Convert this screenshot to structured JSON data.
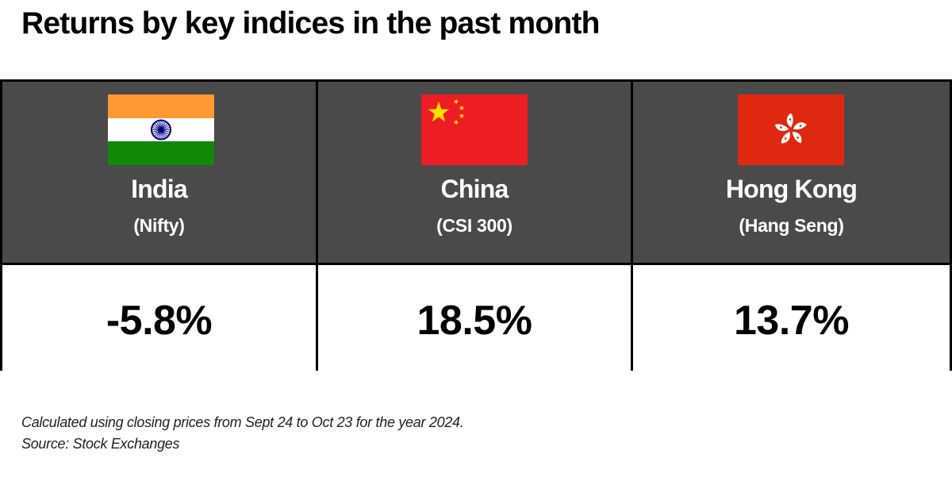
{
  "title": "Returns by key indices in the past month",
  "chart_data": {
    "type": "table",
    "columns": [
      {
        "country": "India",
        "index": "(Nifty)",
        "value": "-5.8%",
        "flag": "india-flag-icon"
      },
      {
        "country": "China",
        "index": "(CSI 300)",
        "value": "18.5%",
        "flag": "china-flag-icon"
      },
      {
        "country": "Hong Kong",
        "index": "(Hang Seng)",
        "value": "13.7%",
        "flag": "hong-kong-flag-icon"
      }
    ]
  },
  "footnote": {
    "line1": "Calculated using closing prices from Sept 24 to Oct 23 for the year 2024.",
    "line2": "Source: Stock Exchanges"
  },
  "colors": {
    "header_bg": "#4a4a4a",
    "india_saffron": "#FF9933",
    "india_green": "#138808",
    "india_chakra": "#000080",
    "china_red": "#EE1C25",
    "china_star": "#FFDE00",
    "hk_red": "#DE2910"
  }
}
